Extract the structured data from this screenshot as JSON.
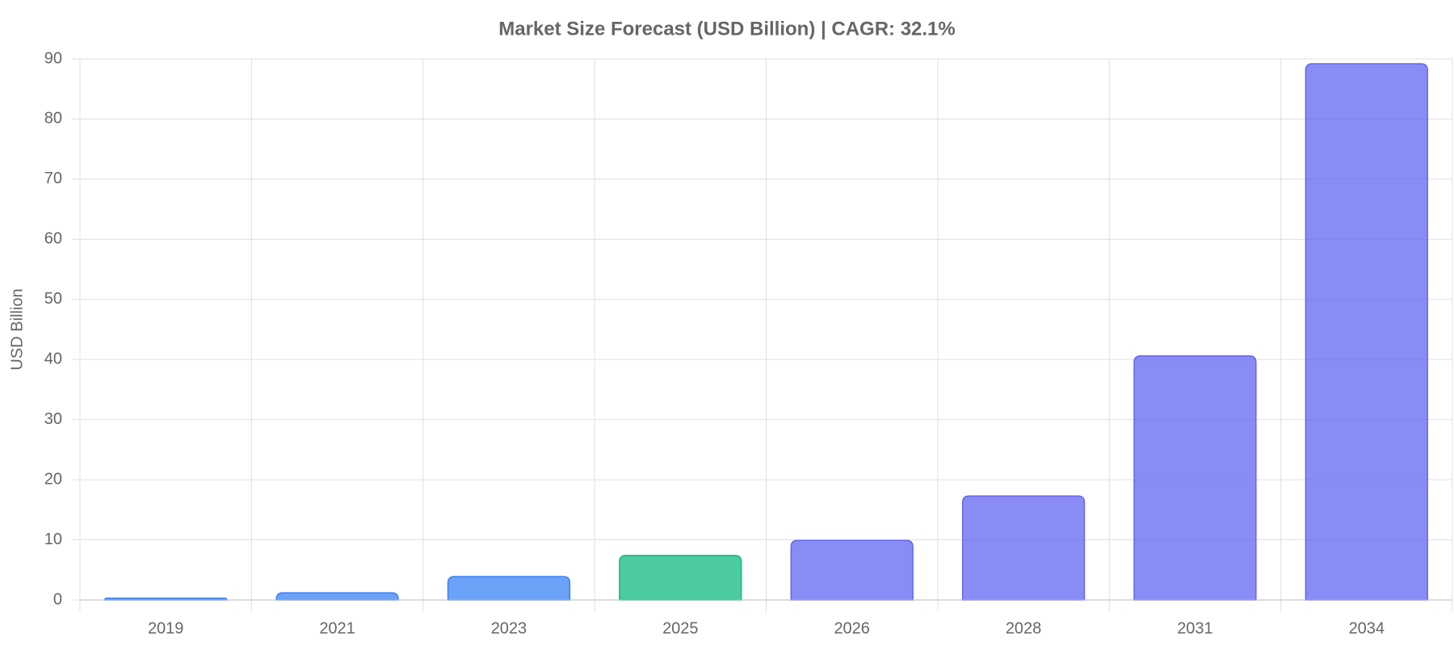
{
  "chart_data": {
    "type": "bar",
    "title": "Market Size Forecast (USD Billion) | CAGR: 32.1%",
    "y_label": "USD Billion",
    "categories": [
      "2019",
      "2021",
      "2023",
      "2025",
      "2026",
      "2028",
      "2031",
      "2034"
    ],
    "values": [
      0.3,
      1.2,
      3.9,
      7.4,
      9.9,
      17.3,
      40.6,
      89.2
    ],
    "colors": [
      "#3b82f6",
      "#3b82f6",
      "#3b82f6",
      "#10b981",
      "#6366f1",
      "#6366f1",
      "#6366f1",
      "#6366f1"
    ],
    "ylim": [
      0,
      90
    ],
    "yticks": [
      0,
      10,
      20,
      30,
      40,
      50,
      60,
      70,
      80,
      90
    ],
    "grid": true
  }
}
